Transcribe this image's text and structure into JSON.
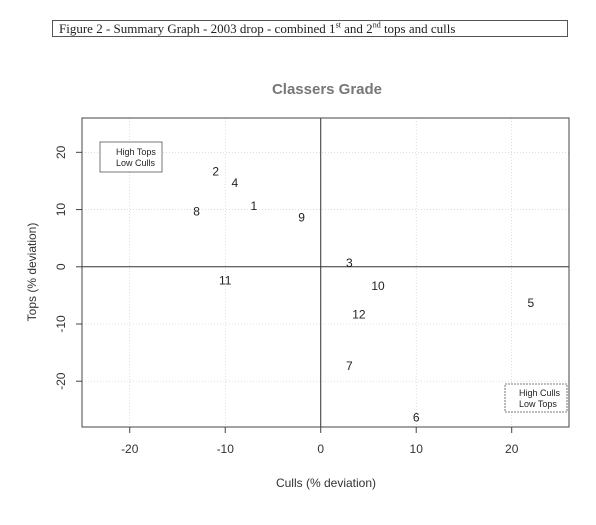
{
  "caption": {
    "prefix": "Figure 2  - Summary Graph - 2003 drop - combined 1",
    "sup1": "st",
    "mid": " and 2",
    "sup2": "nd",
    "suffix": " tops and culls"
  },
  "chart_data": {
    "type": "scatter",
    "title": "Classers Grade",
    "xlabel": "Culls (% deviation)",
    "ylabel": "Tops (% deviation)",
    "xlim": [
      -25,
      26
    ],
    "ylim": [
      -28,
      26
    ],
    "xticks": [
      -20,
      -10,
      0,
      10,
      20
    ],
    "yticks": [
      -20,
      -10,
      0,
      10,
      20
    ],
    "grid": true,
    "reference_lines": {
      "x": 0,
      "y": 0
    },
    "points": [
      {
        "label": "1",
        "x": -7,
        "y": 10.5
      },
      {
        "label": "2",
        "x": -11,
        "y": 16.5
      },
      {
        "label": "3",
        "x": 3,
        "y": 0.5
      },
      {
        "label": "4",
        "x": -9,
        "y": 14.5
      },
      {
        "label": "5",
        "x": 22,
        "y": -6.5
      },
      {
        "label": "6",
        "x": 10,
        "y": -26.5
      },
      {
        "label": "7",
        "x": 3,
        "y": -17.5
      },
      {
        "label": "8",
        "x": -13,
        "y": 9.5
      },
      {
        "label": "9",
        "x": -2,
        "y": 8.5
      },
      {
        "label": "10",
        "x": 6,
        "y": -3.5
      },
      {
        "label": "11",
        "x": -10,
        "y": -2.5
      },
      {
        "label": "12",
        "x": 4,
        "y": -8.5
      }
    ],
    "quadrant_legends": {
      "top_left": [
        "High Tops",
        "Low Culls"
      ],
      "bottom_right": [
        "High Culls",
        "Low Tops"
      ]
    }
  }
}
